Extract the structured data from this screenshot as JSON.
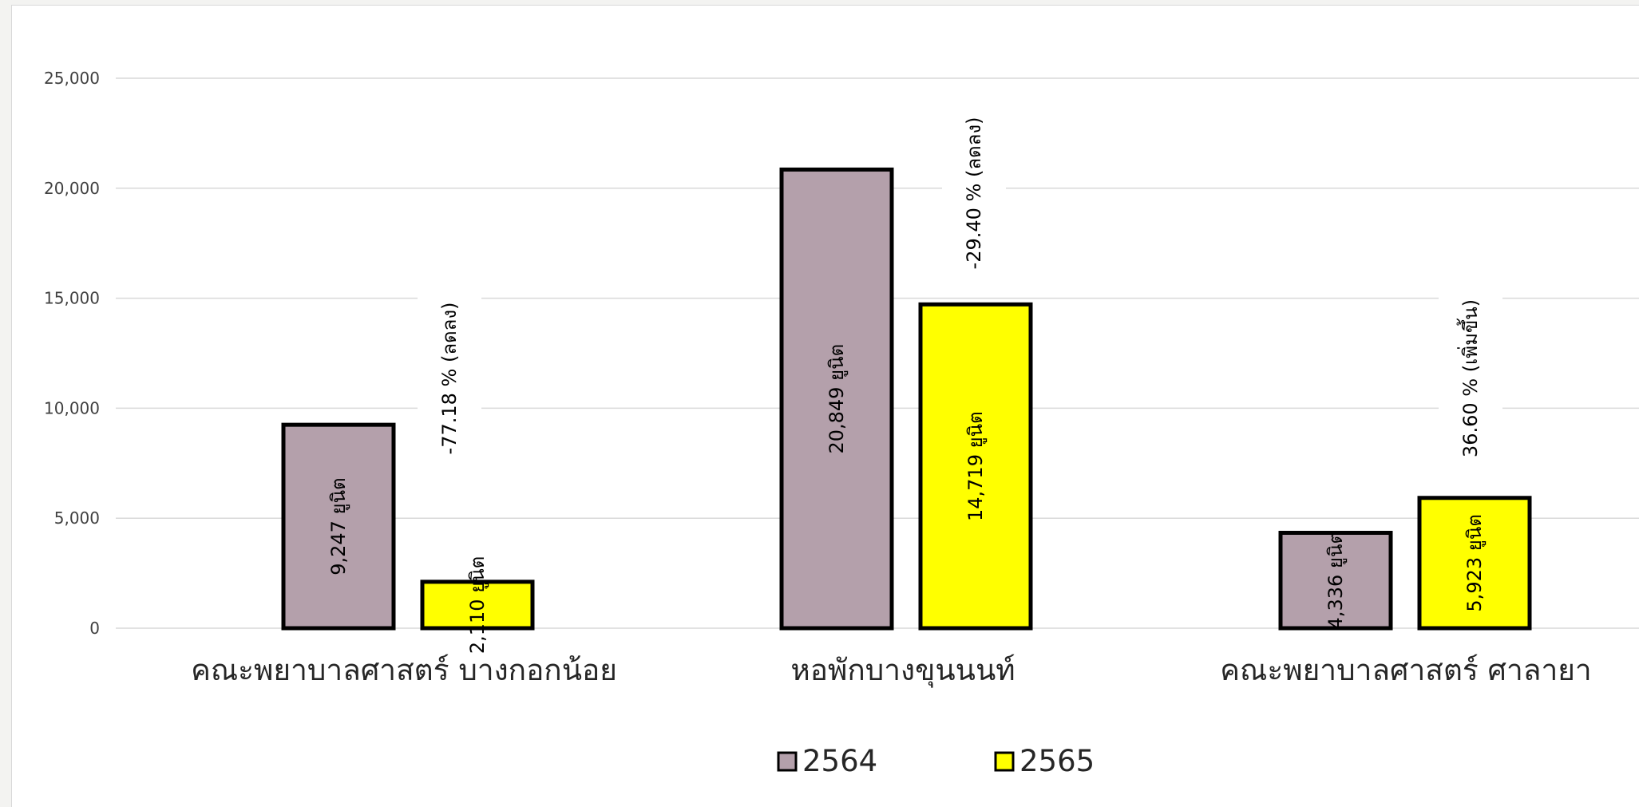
{
  "chart_data": {
    "type": "bar",
    "categories": [
      "คณะพยาบาลศาสตร์   บางกอกน้อย",
      "หอพักบางขุนนนท์",
      "คณะพยาบาลศาสตร์   ศาลายา"
    ],
    "series": [
      {
        "name": "2564",
        "color": "#b4a0ab",
        "values": [
          9247,
          20849,
          4336
        ],
        "labels": [
          "9,247 ยูนิต",
          "20,849 ยูนิต",
          "4,336 ยูนิต"
        ]
      },
      {
        "name": "2565",
        "color": "#ffff00",
        "values": [
          2110,
          14719,
          5923
        ],
        "labels": [
          "2,110 ยูนิต",
          "14,719 ยูนิต",
          "5,923 ยูนิต"
        ]
      }
    ],
    "annotations": [
      "-77.18 % (ลดลง)",
      "-29.40 % (ลดลง)",
      "36.60 % (เพิ่มขึ้น)"
    ],
    "yticks": [
      "0",
      "5,000",
      "10,000",
      "15,000",
      "20,000",
      "25,000"
    ],
    "ylim": [
      0,
      25000
    ],
    "grid": true,
    "legend": "bottom-center",
    "title": "",
    "xlabel": "",
    "ylabel": ""
  }
}
